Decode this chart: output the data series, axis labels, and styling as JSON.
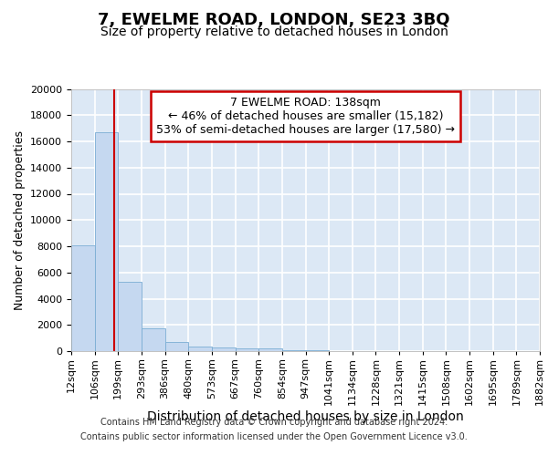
{
  "title": "7, EWELME ROAD, LONDON, SE23 3BQ",
  "subtitle": "Size of property relative to detached houses in London",
  "xlabel": "Distribution of detached houses by size in London",
  "ylabel": "Number of detached properties",
  "footer_line1": "Contains HM Land Registry data © Crown copyright and database right 2024.",
  "footer_line2": "Contains public sector information licensed under the Open Government Licence v3.0.",
  "bin_edges": [
    "12sqm",
    "106sqm",
    "199sqm",
    "293sqm",
    "386sqm",
    "480sqm",
    "573sqm",
    "667sqm",
    "760sqm",
    "854sqm",
    "947sqm",
    "1041sqm",
    "1134sqm",
    "1228sqm",
    "1321sqm",
    "1415sqm",
    "1508sqm",
    "1602sqm",
    "1695sqm",
    "1789sqm",
    "1882sqm"
  ],
  "bar_values": [
    8100,
    16700,
    5300,
    1750,
    700,
    350,
    300,
    200,
    200,
    80,
    50,
    20,
    10,
    5,
    3,
    2,
    1,
    1,
    1,
    0
  ],
  "bar_color": "#c5d8f0",
  "bar_edge_color": "#7aadd4",
  "annotation_line1": "7 EWELME ROAD: 138sqm",
  "annotation_line2": "← 46% of detached houses are smaller (15,182)",
  "annotation_line3": "53% of semi-detached houses are larger (17,580) →",
  "annotation_box_facecolor": "#ffffff",
  "annotation_box_edgecolor": "#cc0000",
  "property_line_color": "#cc0000",
  "property_line_x": 1.35,
  "ylim": [
    0,
    20000
  ],
  "yticks": [
    0,
    2000,
    4000,
    6000,
    8000,
    10000,
    12000,
    14000,
    16000,
    18000,
    20000
  ],
  "fig_facecolor": "#ffffff",
  "axes_facecolor": "#dce8f5",
  "grid_color": "#ffffff",
  "title_fontsize": 13,
  "subtitle_fontsize": 10,
  "tick_fontsize": 8,
  "ylabel_fontsize": 9,
  "xlabel_fontsize": 10,
  "annotation_fontsize": 9,
  "footer_fontsize": 7
}
